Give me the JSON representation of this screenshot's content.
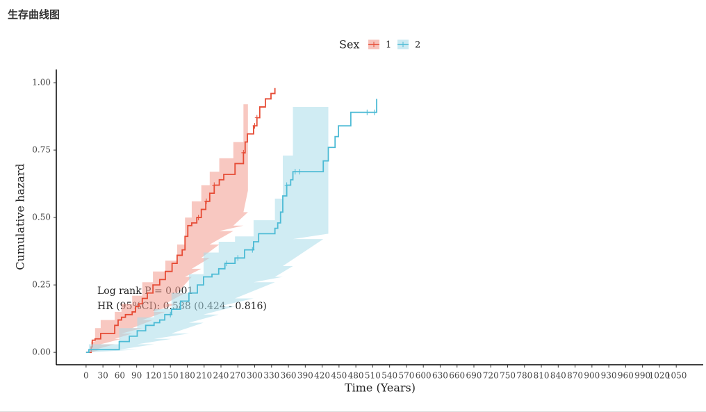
{
  "header": {
    "title": "生存曲线图"
  },
  "chart_data": {
    "type": "step",
    "x_label": "Time (Years)",
    "y_label": "Cumulative hazard",
    "legend_title": "Sex",
    "legend_position": "top",
    "annotations": [
      "Log rank P = 0.001",
      "HR (95%CI): 0.588 (0.424 - 0.816)"
    ],
    "xlim": [
      -53,
      1098
    ],
    "ylim": [
      -0.046,
      1.049
    ],
    "xticks": [
      0,
      30,
      60,
      90,
      120,
      150,
      180,
      210,
      240,
      270,
      300,
      330,
      360,
      390,
      420,
      450,
      480,
      510,
      540,
      570,
      600,
      630,
      660,
      690,
      720,
      750,
      780,
      810,
      840,
      870,
      900,
      930,
      960,
      990,
      1020,
      1050
    ],
    "yticks": [
      {
        "value": 0,
        "label": "0.00"
      },
      {
        "value": 0.25,
        "label": "0.25"
      },
      {
        "value": 0.5,
        "label": "0.50"
      },
      {
        "value": 0.75,
        "label": "0.75"
      },
      {
        "value": 1,
        "label": "1.00"
      }
    ],
    "series": [
      {
        "name": "1",
        "color": "#E64B35",
        "fill": "#F29A8E",
        "x": [
          0,
          9,
          11,
          16,
          26,
          51,
          57,
          63,
          70,
          82,
          88,
          94,
          100,
          109,
          119,
          131,
          141,
          153,
          162,
          171,
          176,
          181,
          188,
          197,
          205,
          213,
          220,
          228,
          237,
          245,
          262,
          265,
          280,
          283,
          287,
          298,
          304,
          309,
          319,
          329,
          336
        ],
        "values": [
          0,
          0.02,
          0.045,
          0.05,
          0.07,
          0.1,
          0.12,
          0.13,
          0.14,
          0.15,
          0.17,
          0.18,
          0.2,
          0.22,
          0.25,
          0.27,
          0.3,
          0.33,
          0.36,
          0.38,
          0.43,
          0.47,
          0.48,
          0.5,
          0.53,
          0.56,
          0.59,
          0.62,
          0.64,
          0.66,
          0.66,
          0.7,
          0.74,
          0.78,
          0.81,
          0.84,
          0.87,
          0.91,
          0.94,
          0.96,
          0.98
        ],
        "censored": [
          200,
          214,
          228,
          280,
          300,
          304
        ],
        "ci": {
          "x": [
            0,
            9,
            16,
            26,
            51,
            63,
            82,
            100,
            119,
            141,
            162,
            176,
            188,
            205,
            220,
            237,
            262,
            280,
            288
          ],
          "lower": [
            0,
            0,
            0.01,
            0.03,
            0.05,
            0.07,
            0.09,
            0.12,
            0.15,
            0.18,
            0.22,
            0.28,
            0.31,
            0.35,
            0.4,
            0.45,
            0.47,
            0.52,
            0.6
          ],
          "upper": [
            0,
            0.04,
            0.09,
            0.12,
            0.15,
            0.18,
            0.21,
            0.26,
            0.3,
            0.34,
            0.4,
            0.5,
            0.56,
            0.62,
            0.67,
            0.72,
            0.78,
            0.92,
            0.99
          ]
        }
      },
      {
        "name": "2",
        "color": "#4DBBD5",
        "fill": "#A9DCEA",
        "x": [
          0,
          5,
          59,
          77,
          91,
          106,
          121,
          131,
          140,
          152,
          168,
          183,
          198,
          209,
          224,
          236,
          247,
          265,
          282,
          298,
          307,
          336,
          341,
          346,
          350,
          357,
          364,
          368,
          422,
          431,
          443,
          449,
          471,
          517
        ],
        "values": [
          0,
          0.01,
          0.04,
          0.06,
          0.08,
          0.1,
          0.11,
          0.12,
          0.14,
          0.16,
          0.19,
          0.22,
          0.25,
          0.28,
          0.29,
          0.31,
          0.33,
          0.35,
          0.38,
          0.41,
          0.44,
          0.46,
          0.48,
          0.52,
          0.58,
          0.62,
          0.64,
          0.67,
          0.71,
          0.76,
          0.8,
          0.84,
          0.89,
          0.94
        ],
        "censored": [
          150,
          250,
          270,
          296,
          357,
          372,
          380,
          500,
          513
        ],
        "ci": {
          "x": [
            0,
            5,
            59,
            91,
            121,
            152,
            183,
            209,
            236,
            265,
            298,
            336,
            350,
            368,
            422,
            431
          ],
          "lower": [
            0,
            0,
            0.01,
            0.03,
            0.05,
            0.07,
            0.11,
            0.14,
            0.17,
            0.2,
            0.26,
            0.28,
            0.32,
            0.42,
            0.44,
            0.44
          ],
          "upper": [
            0,
            0.03,
            0.09,
            0.13,
            0.16,
            0.22,
            0.29,
            0.37,
            0.41,
            0.43,
            0.49,
            0.57,
            0.73,
            0.91,
            0.91,
            0.91
          ]
        }
      }
    ]
  }
}
